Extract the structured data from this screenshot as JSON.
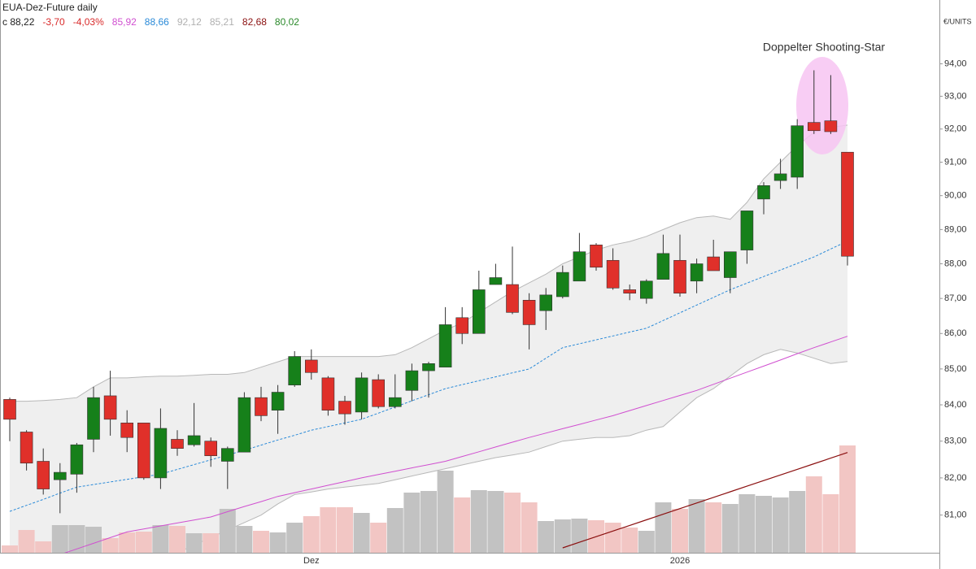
{
  "chart_data": {
    "type": "candlestick",
    "title": "EUA-Dez-Future daily",
    "header_items": [
      {
        "text": "c 88,22",
        "color": "#222222"
      },
      {
        "text": "-3,70",
        "color": "#d92b2b"
      },
      {
        "text": "-4,03%",
        "color": "#d92b2b"
      },
      {
        "text": "85,92",
        "color": "#d04fd0"
      },
      {
        "text": "88,66",
        "color": "#2a8ad8"
      },
      {
        "text": "92,12",
        "color": "#b0b0b0"
      },
      {
        "text": "85,21",
        "color": "#b0b0b0"
      },
      {
        "text": "82,68",
        "color": "#8b1010"
      },
      {
        "text": "80,02",
        "color": "#2a8a2a"
      }
    ],
    "unit": "€/UNITS",
    "annotation": "Doppelter Shooting-Star",
    "log_scale": true,
    "grid": false,
    "ylim": [
      80,
      96
    ],
    "yticks": [
      {
        "value": 81,
        "label": "81,00"
      },
      {
        "value": 82,
        "label": "82,00"
      },
      {
        "value": 83,
        "label": "83,00"
      },
      {
        "value": 84,
        "label": "84,00"
      },
      {
        "value": 85,
        "label": "85,00"
      },
      {
        "value": 86,
        "label": "86,00"
      },
      {
        "value": 87,
        "label": "87,00"
      },
      {
        "value": 88,
        "label": "88,00"
      },
      {
        "value": 89,
        "label": "89,00"
      },
      {
        "value": 90,
        "label": "90,00"
      },
      {
        "value": 91,
        "label": "91,00"
      },
      {
        "value": 92,
        "label": "92,00"
      },
      {
        "value": 93,
        "label": "93,00"
      },
      {
        "value": 94,
        "label": "94,00"
      }
    ],
    "categories": [
      null,
      null,
      null,
      null,
      null,
      null,
      null,
      null,
      null,
      null,
      null,
      null,
      null,
      null,
      null,
      null,
      null,
      null,
      "Dez",
      null,
      null,
      null,
      null,
      null,
      null,
      null,
      null,
      null,
      null,
      null,
      null,
      null,
      null,
      null,
      null,
      null,
      null,
      null,
      null,
      null,
      "2026",
      null,
      null,
      null,
      null,
      null,
      null,
      null,
      null,
      null,
      null
    ],
    "colors": {
      "up": "#16801a",
      "down": "#e0302a",
      "wick": "#333333",
      "volume_up": "#c2c2c2",
      "volume_down": "#f2c6c4"
    },
    "open": [
      84.15,
      83.25,
      82.45,
      81.95,
      82.1,
      83.05,
      84.25,
      83.5,
      83.5,
      82.0,
      83.05,
      82.9,
      83.0,
      82.45,
      82.7,
      84.2,
      83.85,
      84.55,
      85.25,
      84.75,
      84.1,
      83.8,
      84.7,
      83.95,
      84.4,
      84.95,
      85.05,
      86.45,
      86.0,
      87.4,
      87.4,
      86.95,
      86.65,
      87.05,
      87.5,
      88.55,
      88.1,
      87.25,
      87.0,
      87.55,
      88.1,
      87.5,
      88.2,
      87.6,
      88.4,
      89.9,
      90.45,
      90.55,
      92.2,
      92.25,
      91.3
    ],
    "high": [
      84.2,
      83.3,
      82.8,
      82.4,
      82.95,
      84.5,
      84.95,
      83.85,
      83.5,
      83.9,
      83.3,
      84.05,
      83.1,
      82.85,
      84.35,
      84.5,
      84.55,
      85.5,
      85.55,
      84.8,
      84.25,
      84.9,
      84.85,
      84.85,
      85.15,
      85.2,
      86.75,
      86.75,
      87.8,
      88.0,
      88.5,
      87.15,
      87.3,
      87.95,
      88.9,
      88.6,
      88.45,
      87.4,
      87.55,
      88.85,
      88.85,
      88.15,
      88.7,
      88.35,
      89.55,
      90.4,
      91.1,
      92.3,
      93.8,
      93.65,
      91.3
    ],
    "low": [
      83.0,
      82.2,
      81.55,
      81.05,
      81.6,
      82.7,
      83.15,
      82.7,
      81.95,
      81.7,
      82.6,
      82.85,
      82.3,
      81.7,
      82.7,
      83.55,
      83.2,
      84.5,
      84.7,
      83.7,
      83.45,
      83.6,
      83.9,
      83.9,
      84.1,
      84.2,
      85.05,
      85.7,
      86.0,
      87.4,
      86.55,
      85.55,
      86.1,
      87.0,
      87.5,
      87.8,
      87.25,
      86.95,
      86.85,
      87.55,
      87.05,
      87.15,
      87.8,
      87.15,
      88.0,
      89.45,
      90.2,
      90.2,
      91.85,
      91.85,
      87.95
    ],
    "close": [
      83.6,
      82.4,
      81.7,
      82.15,
      82.9,
      84.2,
      83.6,
      83.1,
      82.0,
      83.35,
      82.8,
      83.15,
      82.6,
      82.8,
      84.2,
      83.7,
      84.35,
      85.35,
      84.9,
      83.85,
      83.75,
      84.75,
      83.95,
      84.2,
      84.95,
      85.15,
      86.25,
      86.0,
      87.25,
      87.6,
      86.6,
      86.25,
      87.1,
      87.75,
      88.35,
      87.9,
      87.3,
      87.15,
      87.5,
      88.3,
      87.15,
      88.0,
      87.8,
      88.35,
      89.55,
      90.3,
      90.65,
      92.1,
      91.95,
      91.92,
      88.22
    ],
    "volume": [
      9,
      28,
      14,
      34,
      34,
      32,
      18,
      25,
      26,
      34,
      33,
      24,
      24,
      54,
      33,
      27,
      25,
      37,
      45,
      56,
      56,
      49,
      37,
      55,
      74,
      76,
      101,
      68,
      77,
      76,
      74,
      62,
      39,
      41,
      42,
      40,
      37,
      31,
      27,
      62,
      54,
      66,
      62,
      60,
      72,
      70,
      68,
      76,
      94,
      72,
      132
    ],
    "volume_ma": {
      "color": "#8b1010",
      "values": [
        null,
        null,
        null,
        null,
        null,
        null,
        null,
        null,
        null,
        null,
        null,
        null,
        null,
        null,
        null,
        null,
        null,
        null,
        null,
        null,
        null,
        null,
        null,
        null,
        null,
        null,
        null,
        null,
        null,
        null,
        null,
        null,
        null,
        6,
        12.9,
        19.8,
        26.7,
        33.6,
        40.5,
        47.4,
        54.3,
        61.2,
        68.1,
        75,
        81.9,
        88.8,
        95.7,
        102.6,
        109.5,
        116.4,
        123.3
      ]
    },
    "band": {
      "fill": "#efefef",
      "stroke": "#b8b8b8",
      "upper": [
        84.1,
        84.1,
        84.12,
        84.15,
        84.2,
        84.5,
        84.75,
        84.75,
        84.78,
        84.8,
        84.8,
        84.82,
        84.85,
        84.85,
        84.9,
        85.05,
        85.2,
        85.35,
        85.35,
        85.35,
        85.35,
        85.35,
        85.35,
        85.4,
        85.6,
        85.85,
        86.1,
        86.3,
        86.6,
        86.9,
        87.2,
        87.45,
        87.7,
        88.0,
        88.2,
        88.4,
        88.55,
        88.65,
        88.8,
        89.0,
        89.2,
        89.35,
        89.4,
        89.3,
        89.8,
        90.5,
        91.0,
        91.5,
        91.9,
        92.05,
        92.12
      ],
      "lower": [
        79.0,
        79.1,
        79.2,
        79.3,
        79.4,
        79.5,
        79.6,
        79.7,
        79.8,
        79.9,
        80.0,
        80.2,
        80.4,
        80.6,
        80.8,
        81.0,
        81.3,
        81.55,
        81.62,
        81.7,
        81.75,
        81.8,
        81.85,
        81.95,
        82.05,
        82.15,
        82.25,
        82.35,
        82.45,
        82.55,
        82.62,
        82.7,
        82.85,
        83.0,
        83.05,
        83.1,
        83.1,
        83.15,
        83.3,
        83.4,
        83.8,
        84.2,
        84.45,
        84.8,
        85.15,
        85.4,
        85.55,
        85.45,
        85.3,
        85.15,
        85.21
      ]
    },
    "lines": [
      {
        "color": "#2a8ad8",
        "dash": true,
        "values": [
          81.1,
          81.26,
          81.42,
          81.59,
          81.75,
          81.82,
          81.89,
          81.96,
          82.03,
          82.1,
          82.23,
          82.36,
          82.49,
          82.62,
          82.75,
          82.89,
          83.03,
          83.16,
          83.3,
          83.4,
          83.5,
          83.6,
          83.77,
          83.94,
          84.11,
          84.28,
          84.45,
          84.56,
          84.67,
          84.78,
          84.89,
          85.0,
          85.3,
          85.6,
          85.71,
          85.82,
          85.93,
          86.04,
          86.15,
          86.37,
          86.59,
          86.81,
          87.03,
          87.25,
          87.44,
          87.63,
          87.82,
          88.01,
          88.2,
          88.43,
          88.66
        ]
      },
      {
        "color": "#d04fd0",
        "dash": false,
        "values": [
          79.6,
          79.72,
          79.83,
          79.95,
          80.1,
          80.25,
          80.4,
          80.55,
          80.63,
          80.71,
          80.79,
          80.87,
          80.95,
          81.09,
          81.23,
          81.36,
          81.5,
          81.6,
          81.7,
          81.8,
          81.9,
          82.0,
          82.09,
          82.18,
          82.27,
          82.36,
          82.45,
          82.58,
          82.71,
          82.84,
          82.97,
          83.1,
          83.22,
          83.34,
          83.46,
          83.58,
          83.7,
          83.84,
          83.98,
          84.12,
          84.26,
          84.4,
          84.57,
          84.74,
          84.91,
          85.08,
          85.25,
          85.43,
          85.6,
          85.76,
          85.92
        ]
      }
    ]
  }
}
